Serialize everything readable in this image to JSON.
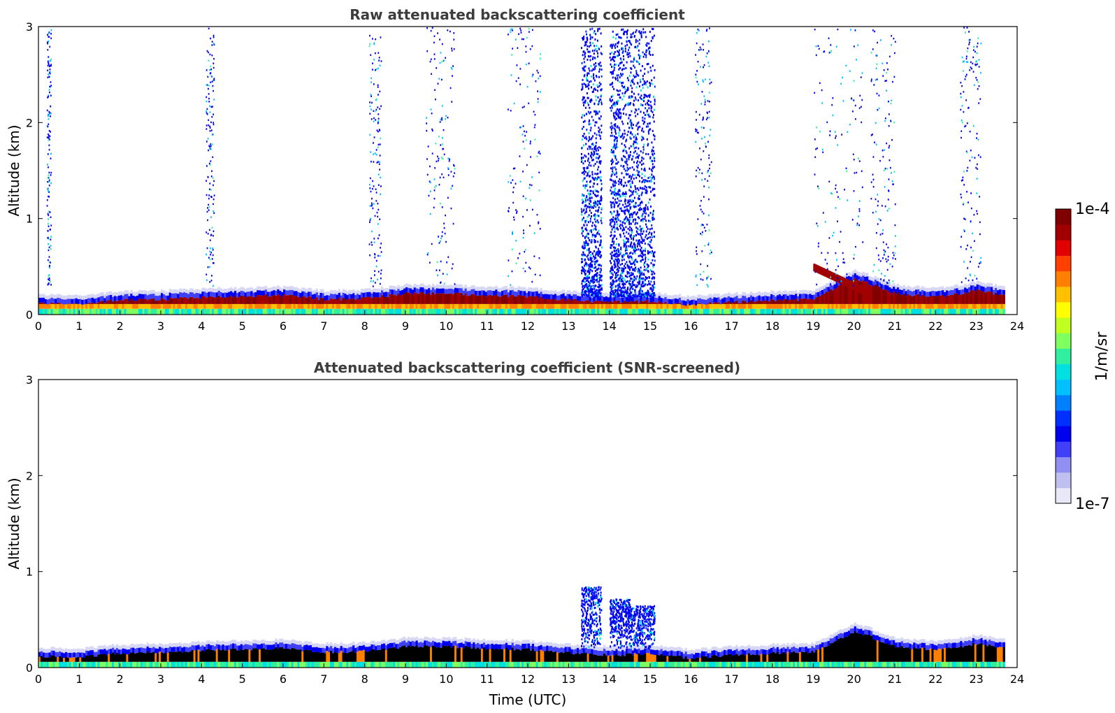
{
  "chart_data": [
    {
      "type": "heatmap",
      "title": "Raw attenuated backscattering coefficient",
      "xlabel": "",
      "ylabel": "Altitude (km)",
      "xlim": [
        0,
        24
      ],
      "ylim": [
        0,
        3
      ],
      "xticks": [
        "0",
        "1",
        "2",
        "3",
        "4",
        "5",
        "6",
        "7",
        "8",
        "9",
        "10",
        "11",
        "12",
        "13",
        "14",
        "15",
        "16",
        "17",
        "18",
        "19",
        "20",
        "21",
        "22",
        "23",
        "24"
      ],
      "yticks": [
        "0",
        "1",
        "2",
        "3"
      ],
      "screened": false,
      "layers": [
        {
          "name": "boundary-layer-top",
          "t_start": 0,
          "t_end": 23.7,
          "alt_km": [
            0.14,
            0.13,
            0.17,
            0.18,
            0.2,
            0.21,
            0.22,
            0.18,
            0.19,
            0.24,
            0.24,
            0.22,
            0.21,
            0.17,
            0.15,
            0.16,
            0.12,
            0.15,
            0.17,
            0.18,
            0.4,
            0.24,
            0.2,
            0.27,
            0.2
          ],
          "level": "max"
        },
        {
          "name": "aerosol-plume-evening",
          "t_start": 19.0,
          "t_end": 20.4,
          "alt_km": [
            0.5,
            0.22
          ],
          "level": "high"
        },
        {
          "name": "cloud-column-13.5",
          "t_start": 13.3,
          "t_end": 13.8,
          "alt_km": [
            0.2,
            3.0
          ],
          "level": "low"
        },
        {
          "name": "cloud-column-14.2",
          "t_start": 14.0,
          "t_end": 14.5,
          "alt_km": [
            0.2,
            3.0
          ],
          "level": "low"
        },
        {
          "name": "cloud-column-14.8",
          "t_start": 14.5,
          "t_end": 15.1,
          "alt_km": [
            0.2,
            3.0
          ],
          "level": "low"
        }
      ]
    },
    {
      "type": "heatmap",
      "title": "Attenuated backscattering coefficient (SNR-screened)",
      "xlabel": "Time (UTC)",
      "ylabel": "Altitude (km)",
      "xlim": [
        0,
        24
      ],
      "ylim": [
        0,
        3
      ],
      "xticks": [
        "0",
        "1",
        "2",
        "3",
        "4",
        "5",
        "6",
        "7",
        "8",
        "9",
        "10",
        "11",
        "12",
        "13",
        "14",
        "15",
        "16",
        "17",
        "18",
        "19",
        "20",
        "21",
        "22",
        "23",
        "24"
      ],
      "yticks": [
        "0",
        "1",
        "2",
        "3"
      ],
      "screened": true,
      "layers": [
        {
          "name": "boundary-layer-top",
          "t_start": 0,
          "t_end": 23.7,
          "alt_km": [
            0.14,
            0.13,
            0.17,
            0.18,
            0.2,
            0.21,
            0.22,
            0.18,
            0.19,
            0.24,
            0.24,
            0.22,
            0.21,
            0.17,
            0.15,
            0.16,
            0.12,
            0.15,
            0.17,
            0.18,
            0.4,
            0.24,
            0.2,
            0.27,
            0.2
          ],
          "level": "saturated"
        },
        {
          "name": "cloud-column-13.5",
          "t_start": 13.3,
          "t_end": 13.8,
          "alt_km": [
            0.2,
            0.85
          ],
          "level": "low"
        },
        {
          "name": "cloud-column-14.2",
          "t_start": 14.0,
          "t_end": 14.5,
          "alt_km": [
            0.2,
            0.72
          ],
          "level": "low"
        },
        {
          "name": "cloud-column-14.8",
          "t_start": 14.5,
          "t_end": 15.1,
          "alt_km": [
            0.2,
            0.65
          ],
          "level": "low"
        }
      ]
    }
  ],
  "colorbar": {
    "max_label": "1e-4",
    "min_label": "1e-7",
    "unit_label": "1/m/sr",
    "colors": [
      "#e8e8f8",
      "#c0c0f0",
      "#9090f0",
      "#4040f8",
      "#0000f0",
      "#0030ff",
      "#0080ff",
      "#00c0ff",
      "#00e0e0",
      "#30f0a0",
      "#80ff60",
      "#c0ff20",
      "#ffff00",
      "#ffc000",
      "#ff8000",
      "#ff4000",
      "#e00000",
      "#a00000",
      "#800000"
    ]
  }
}
